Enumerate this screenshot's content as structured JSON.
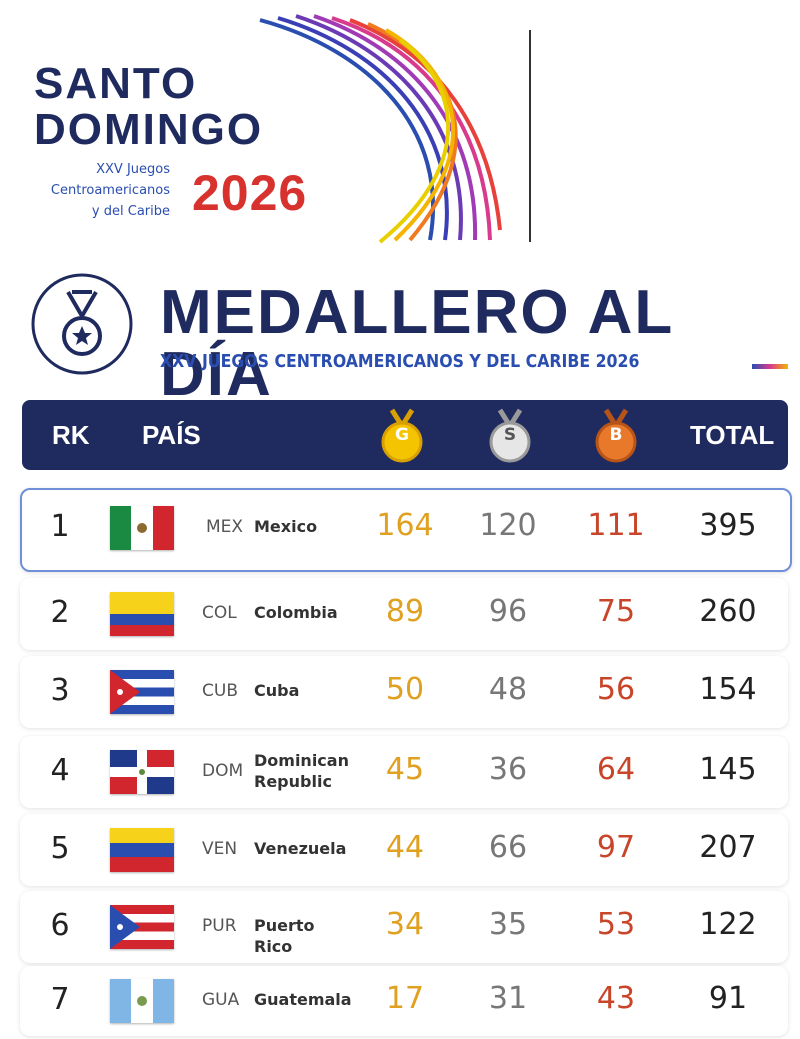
{
  "header": {
    "logo_line1": "SANTO",
    "logo_line2": "DOMINGO",
    "logo_sub": [
      "XXV Juegos",
      "Centroamericanos",
      "y del Caribe"
    ],
    "logo_year": "2026"
  },
  "title": "MEDALLERO AL DÍA",
  "subtitle": "XXV JUEGOS CENTROAMERICANOS Y DEL CARIBE 2026",
  "table": {
    "columns": [
      "RK",
      "PAÍS",
      "G",
      "S",
      "B",
      "TOTAL"
    ],
    "rows": [
      [
        1,
        "MEX",
        "Mexico",
        164,
        120,
        111,
        395
      ],
      [
        2,
        "COL",
        "Colombia",
        89,
        96,
        75,
        260
      ],
      [
        3,
        "CUB",
        "Cuba",
        50,
        48,
        56,
        154
      ],
      [
        4,
        "DOM",
        "Dominican Republic",
        45,
        36,
        64,
        145
      ],
      [
        5,
        "VEN",
        "Venezuela",
        44,
        66,
        97,
        207
      ],
      [
        6,
        "PUR",
        "Puerto Rico",
        34,
        35,
        53,
        122
      ],
      [
        7,
        "GUA",
        "Guatemala",
        17,
        31,
        43,
        91
      ]
    ]
  }
}
